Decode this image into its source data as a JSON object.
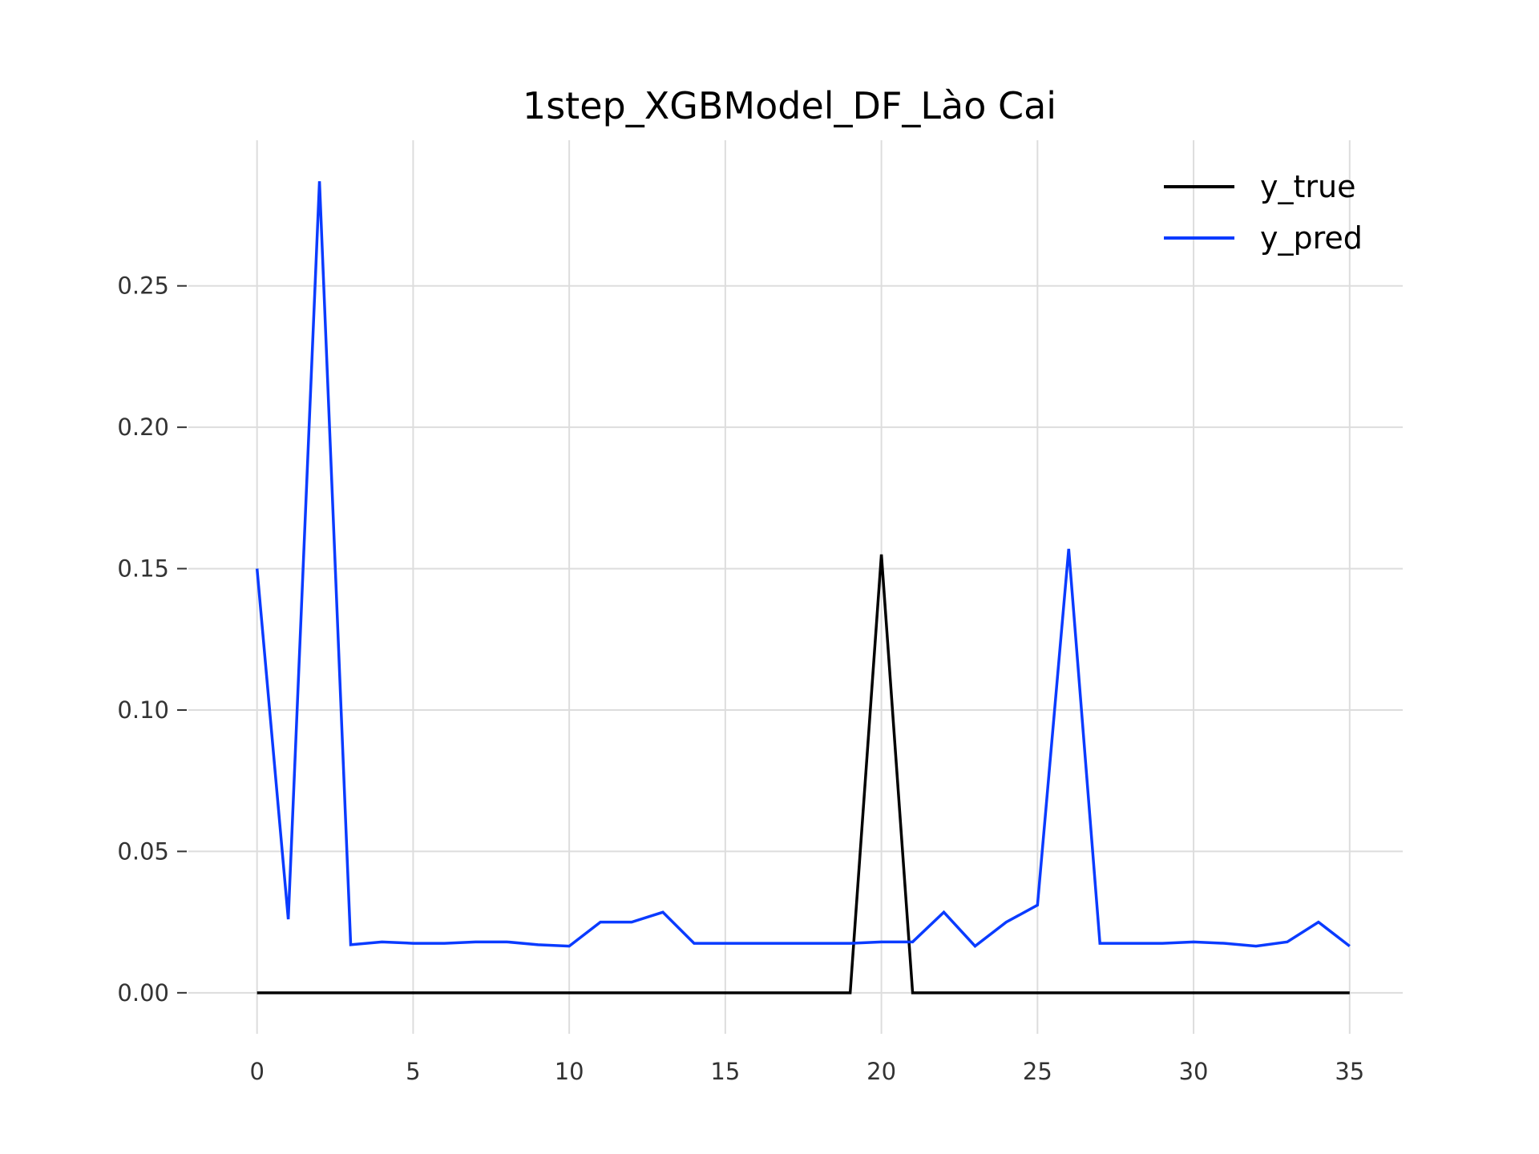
{
  "chart_data": {
    "type": "line",
    "title": "1step_XGBModel_DF_Lào Cai",
    "xlabel": "",
    "ylabel": "",
    "x": [
      0,
      1,
      2,
      3,
      4,
      5,
      6,
      7,
      8,
      9,
      10,
      11,
      12,
      13,
      14,
      15,
      16,
      17,
      18,
      19,
      20,
      21,
      22,
      23,
      24,
      25,
      26,
      27,
      28,
      29,
      30,
      31,
      32,
      33,
      34,
      35
    ],
    "xticks": [
      0,
      5,
      10,
      15,
      20,
      25,
      30,
      35
    ],
    "xtick_labels": [
      "0",
      "5",
      "10",
      "15",
      "20",
      "25",
      "30",
      "35"
    ],
    "yticks": [
      0.0,
      0.05,
      0.1,
      0.15,
      0.2,
      0.25
    ],
    "ytick_labels": [
      "0.00",
      "0.05",
      "0.10",
      "0.15",
      "0.20",
      "0.25"
    ],
    "xlim": [
      -2.2,
      36.7
    ],
    "ylim": [
      -0.0145,
      0.3015
    ],
    "grid": true,
    "legend_position": "top-right",
    "series": [
      {
        "name": "y_true",
        "color": "#000000",
        "values": [
          0,
          0,
          0,
          0,
          0,
          0,
          0,
          0,
          0,
          0,
          0,
          0,
          0,
          0,
          0,
          0,
          0,
          0,
          0,
          0,
          0.155,
          0,
          0,
          0,
          0,
          0,
          0,
          0,
          0,
          0,
          0,
          0,
          0,
          0,
          0,
          0
        ]
      },
      {
        "name": "y_pred",
        "color": "#0a3bff",
        "values": [
          0.15,
          0.026,
          0.287,
          0.017,
          0.018,
          0.0175,
          0.0175,
          0.018,
          0.018,
          0.017,
          0.0165,
          0.025,
          0.025,
          0.0285,
          0.0175,
          0.0175,
          0.0175,
          0.0175,
          0.0175,
          0.0175,
          0.018,
          0.018,
          0.0285,
          0.0165,
          0.025,
          0.031,
          0.157,
          0.0175,
          0.0175,
          0.0175,
          0.018,
          0.0175,
          0.0165,
          0.018,
          0.025,
          0.0165
        ]
      }
    ]
  }
}
